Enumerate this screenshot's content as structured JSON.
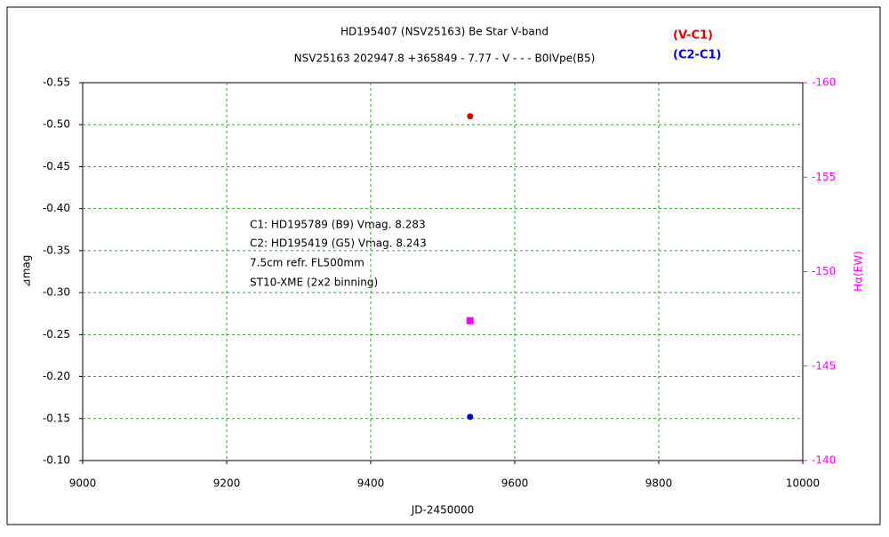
{
  "chart_data": {
    "type": "scatter",
    "title": "HD195407 (NSV25163)    Be Star    V-band",
    "subtitle": "NSV25163 202947.8 +365849 - 7.77 - V - - - B0IVpe(B5)",
    "x_label": "JD-2450000",
    "y_label": "⊿mag",
    "y2_label": "Hα(EW)",
    "annotations": [
      "C1: HD195789 (B9) Vmag. 8.283",
      "C2: HD195419 (G5) Vmag. 8.243",
      "7.5cm refr. FL500mm",
      "ST10-XME (2x2 binning)"
    ],
    "xlim": [
      9000,
      10000
    ],
    "xticks": [
      9000,
      9200,
      9400,
      9600,
      9800,
      10000
    ],
    "ylim": [
      -0.1,
      -0.55
    ],
    "yticks": [
      -0.55,
      {
        "value": -0.5,
        "label": "-0.50"
      },
      -0.45,
      {
        "value": -0.4,
        "label": "-0.40"
      },
      -0.35,
      {
        "value": -0.3,
        "label": "-0.30"
      },
      -0.25,
      {
        "value": -0.2,
        "label": "-0.20"
      },
      -0.15,
      {
        "value": -0.1,
        "label": "-0.10"
      }
    ],
    "y2lim": [
      -140,
      -160
    ],
    "y2ticks": [
      -160,
      -155,
      -150,
      -145,
      -140
    ],
    "grid": true,
    "series": [
      {
        "name": "(V-C1)",
        "color": "#e00000",
        "marker": "circle",
        "x": [
          9538
        ],
        "values": [
          -0.51
        ]
      },
      {
        "name": "(C2-C1)",
        "color": "#0000e0",
        "marker": "circle",
        "x": [
          9538
        ],
        "values": [
          -0.152
        ]
      },
      {
        "color": "#ff00ff",
        "marker": "square",
        "axis": "y2",
        "x": [
          9538
        ],
        "values": [
          -147.4
        ]
      }
    ]
  }
}
